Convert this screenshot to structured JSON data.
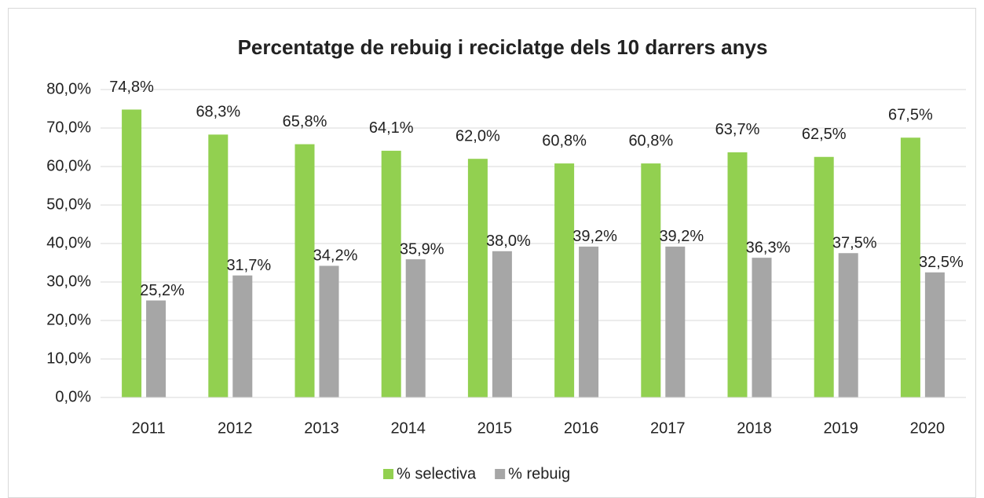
{
  "chart_data": {
    "type": "bar",
    "title": "Percentatge de rebuig i reciclatge dels 10 darrers anys",
    "categories": [
      "2011",
      "2012",
      "2013",
      "2014",
      "2015",
      "2016",
      "2017",
      "2018",
      "2019",
      "2020"
    ],
    "series": [
      {
        "name": "% selectiva",
        "color": "#92d050",
        "values": [
          74.8,
          68.3,
          65.8,
          64.1,
          62.0,
          60.8,
          60.8,
          63.7,
          62.5,
          67.5
        ],
        "value_labels": [
          "74,8%",
          "68,3%",
          "65,8%",
          "64,1%",
          "62,0%",
          "60,8%",
          "60,8%",
          "63,7%",
          "62,5%",
          "67,5%"
        ]
      },
      {
        "name": "% rebuig",
        "color": "#a6a6a6",
        "values": [
          25.2,
          31.7,
          34.2,
          35.9,
          38.0,
          39.2,
          39.2,
          36.3,
          37.5,
          32.5
        ],
        "value_labels": [
          "25,2%",
          "31,7%",
          "34,2%",
          "35,9%",
          "38,0%",
          "39,2%",
          "39,2%",
          "36,3%",
          "37,5%",
          "32,5%"
        ]
      }
    ],
    "ylim": [
      0,
      80
    ],
    "yticks": [
      {
        "value": 0,
        "label": "0,0%"
      },
      {
        "value": 10,
        "label": "10,0%"
      },
      {
        "value": 20,
        "label": "20,0%"
      },
      {
        "value": 30,
        "label": "30,0%"
      },
      {
        "value": 40,
        "label": "40,0%"
      },
      {
        "value": 50,
        "label": "50,0%"
      },
      {
        "value": 60,
        "label": "60,0%"
      },
      {
        "value": 70,
        "label": "70,0%"
      },
      {
        "value": 80,
        "label": "80,0%"
      }
    ],
    "grid": true,
    "legend": "bottom"
  }
}
